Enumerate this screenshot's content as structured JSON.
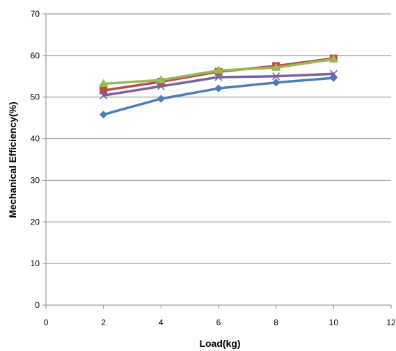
{
  "chart_data": {
    "type": "line",
    "title": "",
    "xlabel": "Load(kg)",
    "ylabel": "Mechanical Efficiency(%)",
    "xlim": [
      0,
      12
    ],
    "ylim": [
      0,
      70
    ],
    "x_ticks": [
      "0",
      "2",
      "4",
      "6",
      "8",
      "10",
      "12"
    ],
    "y_ticks": [
      "0",
      "10",
      "20",
      "30",
      "40",
      "50",
      "60",
      "70"
    ],
    "grid": "horizontal",
    "legend": "none",
    "x": [
      2,
      4,
      6,
      8,
      10
    ],
    "series": [
      {
        "color": "#4a7ebb",
        "marker": "diamond",
        "values": [
          45.8,
          49.6,
          52.1,
          53.5,
          54.6
        ]
      },
      {
        "color": "#be4b48",
        "marker": "square",
        "values": [
          51.6,
          53.7,
          56.1,
          57.5,
          59.3
        ]
      },
      {
        "color": "#98b954",
        "marker": "triangle",
        "values": [
          53.2,
          54.1,
          56.4,
          57.1,
          59.1
        ]
      },
      {
        "color": "#7d60a0",
        "marker": "x",
        "values": [
          50.4,
          52.6,
          54.8,
          55.0,
          55.6
        ]
      }
    ]
  }
}
